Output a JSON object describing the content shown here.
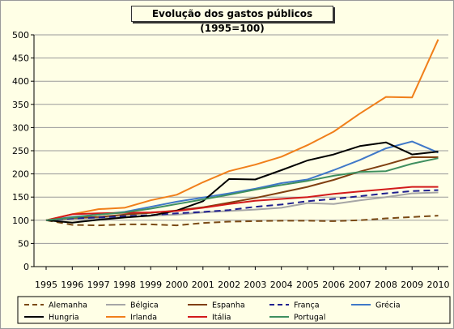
{
  "chart_data": {
    "type": "line",
    "title": "Evolução dos gastos públicos (1995=100)",
    "xlabel": "",
    "ylabel": "",
    "ylim": [
      0,
      500
    ],
    "yticks": [
      "0",
      "50",
      "100",
      "150",
      "200",
      "250",
      "300",
      "350",
      "400",
      "450",
      "500"
    ],
    "x": [
      "1995",
      "1996",
      "1997",
      "1998",
      "1999",
      "2000",
      "2001",
      "2002",
      "2003",
      "2004",
      "2005",
      "2006",
      "2007",
      "2008",
      "2009",
      "2010"
    ],
    "grid": "horizontal",
    "legend_position": "bottom",
    "series": [
      {
        "name": "Alemanha",
        "color": "#7a4a14",
        "dash": "8,5",
        "values": [
          100,
          90,
          89,
          91,
          91,
          89,
          94,
          97,
          98,
          99,
          99,
          98,
          100,
          104,
          107,
          110
        ]
      },
      {
        "name": "Bélgica",
        "color": "#a6a6a6",
        "dash": "",
        "values": [
          100,
          103,
          104,
          107,
          110,
          112,
          117,
          120,
          123,
          127,
          137,
          135,
          143,
          150,
          158,
          160
        ]
      },
      {
        "name": "Espanha",
        "color": "#7f3f10",
        "dash": "",
        "values": [
          100,
          105,
          107,
          112,
          116,
          121,
          128,
          138,
          148,
          160,
          172,
          187,
          205,
          220,
          236,
          236
        ]
      },
      {
        "name": "França",
        "color": "#1f1f8f",
        "dash": "8,5",
        "values": [
          100,
          104,
          106,
          109,
          111,
          115,
          118,
          122,
          129,
          134,
          141,
          146,
          152,
          158,
          163,
          165
        ]
      },
      {
        "name": "Grécia",
        "color": "#3f78c8",
        "dash": "",
        "values": [
          100,
          107,
          112,
          118,
          129,
          140,
          149,
          158,
          168,
          180,
          188,
          208,
          230,
          255,
          270,
          246
        ]
      },
      {
        "name": "Hungria",
        "color": "#000000",
        "dash": "",
        "values": [
          100,
          95,
          101,
          106,
          110,
          121,
          141,
          189,
          188,
          208,
          229,
          242,
          260,
          268,
          242,
          248
        ]
      },
      {
        "name": "Irlanda",
        "color": "#f07f1a",
        "dash": "",
        "values": [
          100,
          113,
          124,
          127,
          143,
          155,
          182,
          206,
          220,
          237,
          262,
          291,
          330,
          366,
          365,
          490
        ]
      },
      {
        "name": "Itália",
        "color": "#d21a1a",
        "dash": "",
        "values": [
          100,
          113,
          115,
          116,
          117,
          120,
          127,
          135,
          142,
          146,
          150,
          157,
          162,
          167,
          172,
          172
        ]
      },
      {
        "name": "Portugal",
        "color": "#3f8f5f",
        "dash": "",
        "values": [
          100,
          106,
          112,
          117,
          125,
          135,
          145,
          155,
          166,
          176,
          185,
          196,
          204,
          206,
          222,
          234
        ]
      }
    ]
  }
}
